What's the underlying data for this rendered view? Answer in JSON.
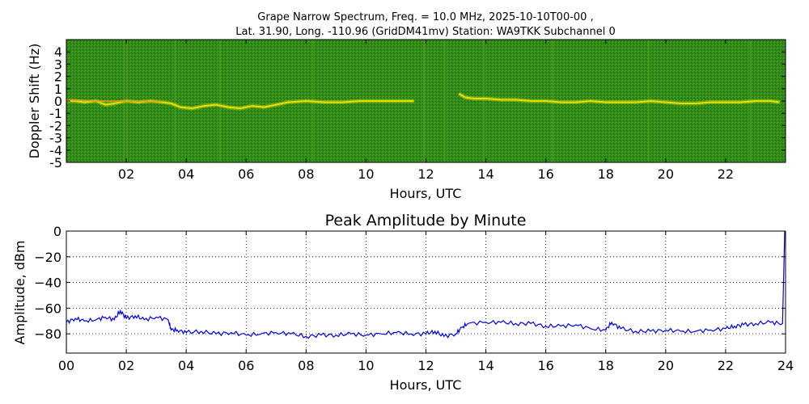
{
  "chart_data": [
    {
      "type": "heatmap",
      "title_line1": "Grape Narrow Spectrum, Freq. = 10.0 MHz, 2025-10-10T00-00 ,",
      "title_line2": "Lat.  31.90, Long. -110.96 (GridDM41mv) Station: WA9TKK Subchannel 0",
      "xlabel": "Hours, UTC",
      "ylabel": "Doppler Shift (Hz)",
      "xlim": [
        0,
        24
      ],
      "ylim": [
        -5,
        5
      ],
      "x_ticks": [
        2,
        4,
        6,
        8,
        10,
        12,
        14,
        16,
        18,
        20,
        22
      ],
      "x_tick_labels": [
        "02",
        "04",
        "06",
        "08",
        "10",
        "12",
        "14",
        "16",
        "18",
        "20",
        "22"
      ],
      "y_ticks": [
        -5,
        -4,
        -3,
        -2,
        -1,
        0,
        1,
        2,
        3,
        4
      ],
      "y_tick_labels": [
        "-5",
        "-4",
        "-3",
        "-2",
        "-1",
        "0",
        "1",
        "2",
        "3",
        "4"
      ],
      "colors": {
        "background": "#2f8a18",
        "signal": "#f2e400",
        "peak": "#e8a020",
        "streak": "#5fa82a"
      },
      "trace": {
        "hours": [
          0.0,
          0.3,
          0.6,
          1.0,
          1.3,
          1.6,
          2.0,
          2.4,
          2.8,
          3.2,
          3.5,
          3.8,
          4.2,
          4.6,
          5.0,
          5.4,
          5.8,
          6.2,
          6.6,
          7.0,
          7.4,
          8.0,
          8.6,
          9.2,
          9.8,
          10.4,
          11.0,
          11.6,
          12.0,
          12.6,
          13.1,
          13.3,
          13.6,
          14.0,
          14.5,
          15.0,
          15.5,
          16.0,
          16.5,
          17.0,
          17.5,
          18.0,
          18.5,
          19.0,
          19.5,
          20.0,
          20.5,
          21.0,
          21.5,
          22.0,
          22.5,
          23.0,
          23.5,
          23.8
        ],
        "doppler_hz": [
          0.0,
          0.0,
          -0.1,
          0.0,
          -0.3,
          -0.2,
          0.0,
          -0.1,
          0.0,
          -0.1,
          -0.2,
          -0.5,
          -0.6,
          -0.4,
          -0.3,
          -0.5,
          -0.6,
          -0.4,
          -0.5,
          -0.3,
          -0.1,
          0.0,
          -0.1,
          -0.1,
          0.0,
          0.0,
          0.0,
          0.0,
          null,
          null,
          0.6,
          0.3,
          0.2,
          0.2,
          0.1,
          0.1,
          0.0,
          0.0,
          -0.1,
          -0.1,
          0.0,
          -0.1,
          -0.1,
          -0.1,
          0.0,
          -0.1,
          -0.2,
          -0.2,
          -0.1,
          -0.1,
          -0.1,
          0.0,
          0.0,
          -0.1
        ]
      }
    },
    {
      "type": "line",
      "title": "Peak Amplitude by Minute",
      "xlabel": "Hours, UTC",
      "ylabel": "Amplitude, dBm",
      "xlim": [
        0,
        24
      ],
      "ylim": [
        -95,
        0
      ],
      "x_ticks": [
        0,
        2,
        4,
        6,
        8,
        10,
        12,
        14,
        16,
        18,
        20,
        22,
        24
      ],
      "x_tick_labels": [
        "00",
        "02",
        "04",
        "06",
        "08",
        "10",
        "12",
        "14",
        "16",
        "18",
        "20",
        "22",
        "24"
      ],
      "y_ticks": [
        0,
        -20,
        -40,
        -60,
        -80
      ],
      "y_tick_labels": [
        "0",
        "−20",
        "−40",
        "−60",
        "−80"
      ],
      "grid": true,
      "line_color": "#0000ee",
      "series": [
        {
          "x": [
            0.0,
            0.3,
            0.6,
            1.0,
            1.3,
            1.6,
            1.8,
            2.0,
            2.3,
            2.6,
            3.0,
            3.4,
            3.5,
            3.7,
            4.0,
            4.5,
            5.0,
            5.5,
            6.0,
            6.5,
            7.0,
            7.5,
            8.0,
            8.5,
            9.0,
            9.5,
            10.0,
            10.5,
            11.0,
            11.5,
            12.0,
            12.3,
            12.6,
            13.0,
            13.2,
            13.4,
            14.0,
            14.5,
            15.0,
            15.5,
            16.0,
            16.5,
            17.0,
            17.5,
            18.0,
            18.2,
            18.5,
            19.0,
            19.5,
            20.0,
            20.5,
            21.0,
            21.5,
            22.0,
            22.3,
            22.6,
            23.0,
            23.5,
            23.9
          ],
          "y": [
            -71,
            -68,
            -70,
            -69,
            -67,
            -69,
            -62,
            -68,
            -66,
            -69,
            -67,
            -69,
            -77,
            -77,
            -79,
            -78,
            -80,
            -79,
            -81,
            -80,
            -79,
            -80,
            -82,
            -81,
            -81,
            -80,
            -81,
            -80,
            -79,
            -80,
            -80,
            -78,
            -82,
            -80,
            -75,
            -72,
            -71,
            -71,
            -72,
            -72,
            -74,
            -74,
            -73,
            -76,
            -77,
            -71,
            -76,
            -78,
            -78,
            -77,
            -78,
            -78,
            -77,
            -76,
            -74,
            -73,
            -72,
            -71,
            -72
          ]
        }
      ]
    }
  ]
}
